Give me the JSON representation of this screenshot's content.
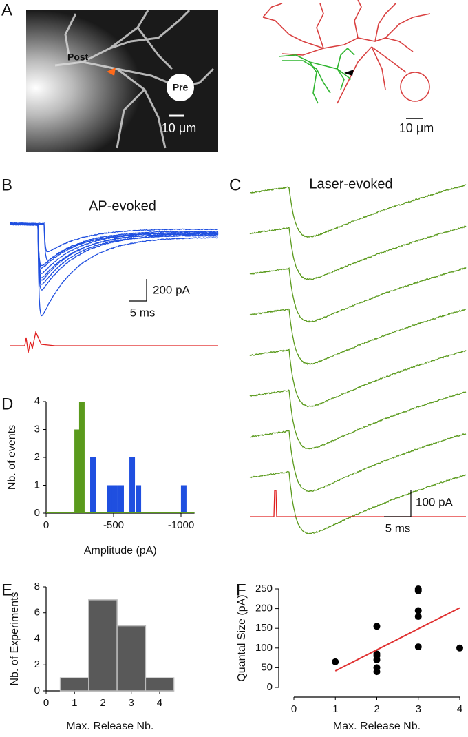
{
  "panel_labels": [
    "A",
    "B",
    "C",
    "D",
    "E",
    "F"
  ],
  "image_panel": {
    "post": "Post",
    "pre": "Pre",
    "scale_image": "10 μm",
    "scale_drawing": "10 μm"
  },
  "traces_b": {
    "title": "AP-evoked",
    "scale_y": "200 pA",
    "scale_x": "5 ms"
  },
  "traces_c": {
    "title": "Laser-evoked",
    "scale_y": "100 pA",
    "scale_x": "5 ms"
  },
  "chart_data": [
    {
      "type": "bar",
      "ylabel": "Nb. of events",
      "xlabel": "Amplitude (pA)",
      "xlim": [
        0,
        -1100
      ],
      "xticks": [
        0,
        -500,
        -1000
      ],
      "ylim": [
        0,
        4
      ],
      "yticks": [
        0,
        1,
        2,
        3,
        4
      ],
      "series": [
        {
          "color": "#5a9a1c",
          "x": [
            -230,
            -265
          ],
          "values": [
            3,
            4
          ]
        },
        {
          "color": "#1f4fe0",
          "x": [
            -347,
            -470,
            -510,
            -556,
            -638,
            -684,
            -1020
          ],
          "values": [
            2,
            1,
            1,
            1,
            2,
            1,
            1
          ]
        }
      ]
    },
    {
      "type": "histogram",
      "ylabel": "Nb. of Experiments",
      "xlabel": "Max. Release Nb.",
      "xlim": [
        0,
        4.5
      ],
      "xticks": [
        0,
        1,
        2,
        3,
        4
      ],
      "ylim": [
        0,
        8
      ],
      "yticks": [
        0,
        2,
        4,
        6,
        8
      ],
      "bins": [
        0.5,
        1.5,
        2.5,
        3.5,
        4.5
      ],
      "values": [
        1,
        7,
        5,
        1
      ],
      "color": "#595959"
    },
    {
      "type": "scatter",
      "ylabel": "Quantal Size (pA)",
      "xlabel": "Max. Release Nb.",
      "xlim": [
        0,
        4
      ],
      "xticks": [
        0,
        1,
        2,
        3,
        4
      ],
      "ylim": [
        0,
        250
      ],
      "yticks": [
        0,
        50,
        100,
        150,
        200,
        250
      ],
      "x": [
        1,
        2,
        2,
        2,
        2,
        2,
        2,
        3,
        3,
        3,
        3,
        3,
        4
      ],
      "values": [
        65,
        155,
        85,
        80,
        70,
        50,
        40,
        250,
        245,
        195,
        180,
        103,
        100
      ],
      "color": "#000000",
      "fit": {
        "x": [
          1,
          4
        ],
        "y": [
          42,
          202
        ],
        "color": "#e03030"
      }
    }
  ]
}
